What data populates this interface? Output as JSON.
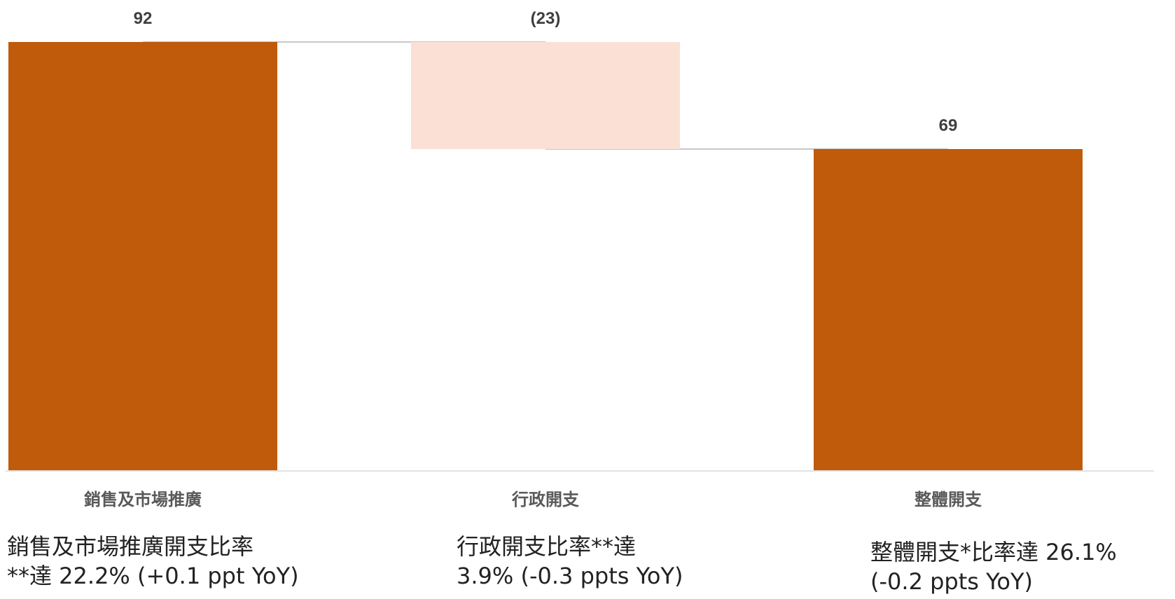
{
  "chart_data": {
    "type": "bar",
    "subtype": "waterfall",
    "categories": [
      "銷售及市場推廣",
      "行政開支",
      "整體開支"
    ],
    "values": [
      92,
      -23,
      69
    ],
    "bar_kind": [
      "total",
      "decrease",
      "total"
    ],
    "value_labels": [
      "92",
      "(23)",
      "69"
    ],
    "ylim": [
      0,
      92
    ],
    "grid": false,
    "legend": "none",
    "colors": {
      "total": "#BF5B0A",
      "decrease": "#FBE0D5",
      "connector": "#A6A6A6",
      "axis": "#D9D9D9",
      "value_label": "#404040",
      "category_label": "#595959"
    }
  },
  "notes": [
    {
      "line1": "銷售及市場推廣開支比率",
      "line2": "**達 22.2% (+0.1 ppt YoY)"
    },
    {
      "line1": "行政開支比率**達",
      "line2": "3.9% (-0.3 ppts YoY)"
    },
    {
      "line1": "整體開支*比率達 26.1%",
      "line2": "(-0.2 ppts YoY)"
    }
  ]
}
